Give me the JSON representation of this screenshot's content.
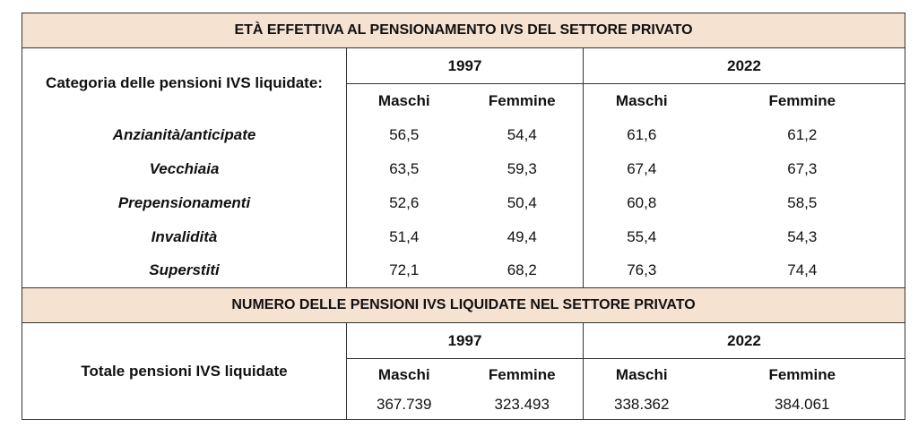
{
  "section1": {
    "title": "ETÀ EFFETTIVA AL PENSIONAMENTO IVS DEL SETTORE PRIVATO",
    "row_header": "Categoria delle pensioni IVS liquidate:",
    "years": [
      "1997",
      "2022"
    ],
    "sexes": [
      "Maschi",
      "Femmine",
      "Maschi",
      "Femmine"
    ],
    "rows": [
      {
        "label": "Anzianità/anticipate",
        "values": [
          "56,5",
          "54,4",
          "61,6",
          "61,2"
        ]
      },
      {
        "label": "Vecchiaia",
        "values": [
          "63,5",
          "59,3",
          "67,4",
          "67,3"
        ]
      },
      {
        "label": "Prepensionamenti",
        "values": [
          "52,6",
          "50,4",
          "60,8",
          "58,5"
        ]
      },
      {
        "label": "Invalidità",
        "values": [
          "51,4",
          "49,4",
          "55,4",
          "54,3"
        ]
      },
      {
        "label": "Superstiti",
        "values": [
          "72,1",
          "68,2",
          "76,3",
          "74,4"
        ]
      }
    ]
  },
  "section2": {
    "title": "NUMERO DELLE PENSIONI IVS LIQUIDATE NEL SETTORE PRIVATO",
    "row_header": "Totale pensioni IVS liquidate",
    "years": [
      "1997",
      "2022"
    ],
    "sexes": [
      "Maschi",
      "Femmine",
      "Maschi",
      "Femmine"
    ],
    "values": [
      "367.739",
      "323.493",
      "338.362",
      "384.061"
    ]
  },
  "colors": {
    "header_band": "#f6e2d1",
    "border": "#333333"
  }
}
